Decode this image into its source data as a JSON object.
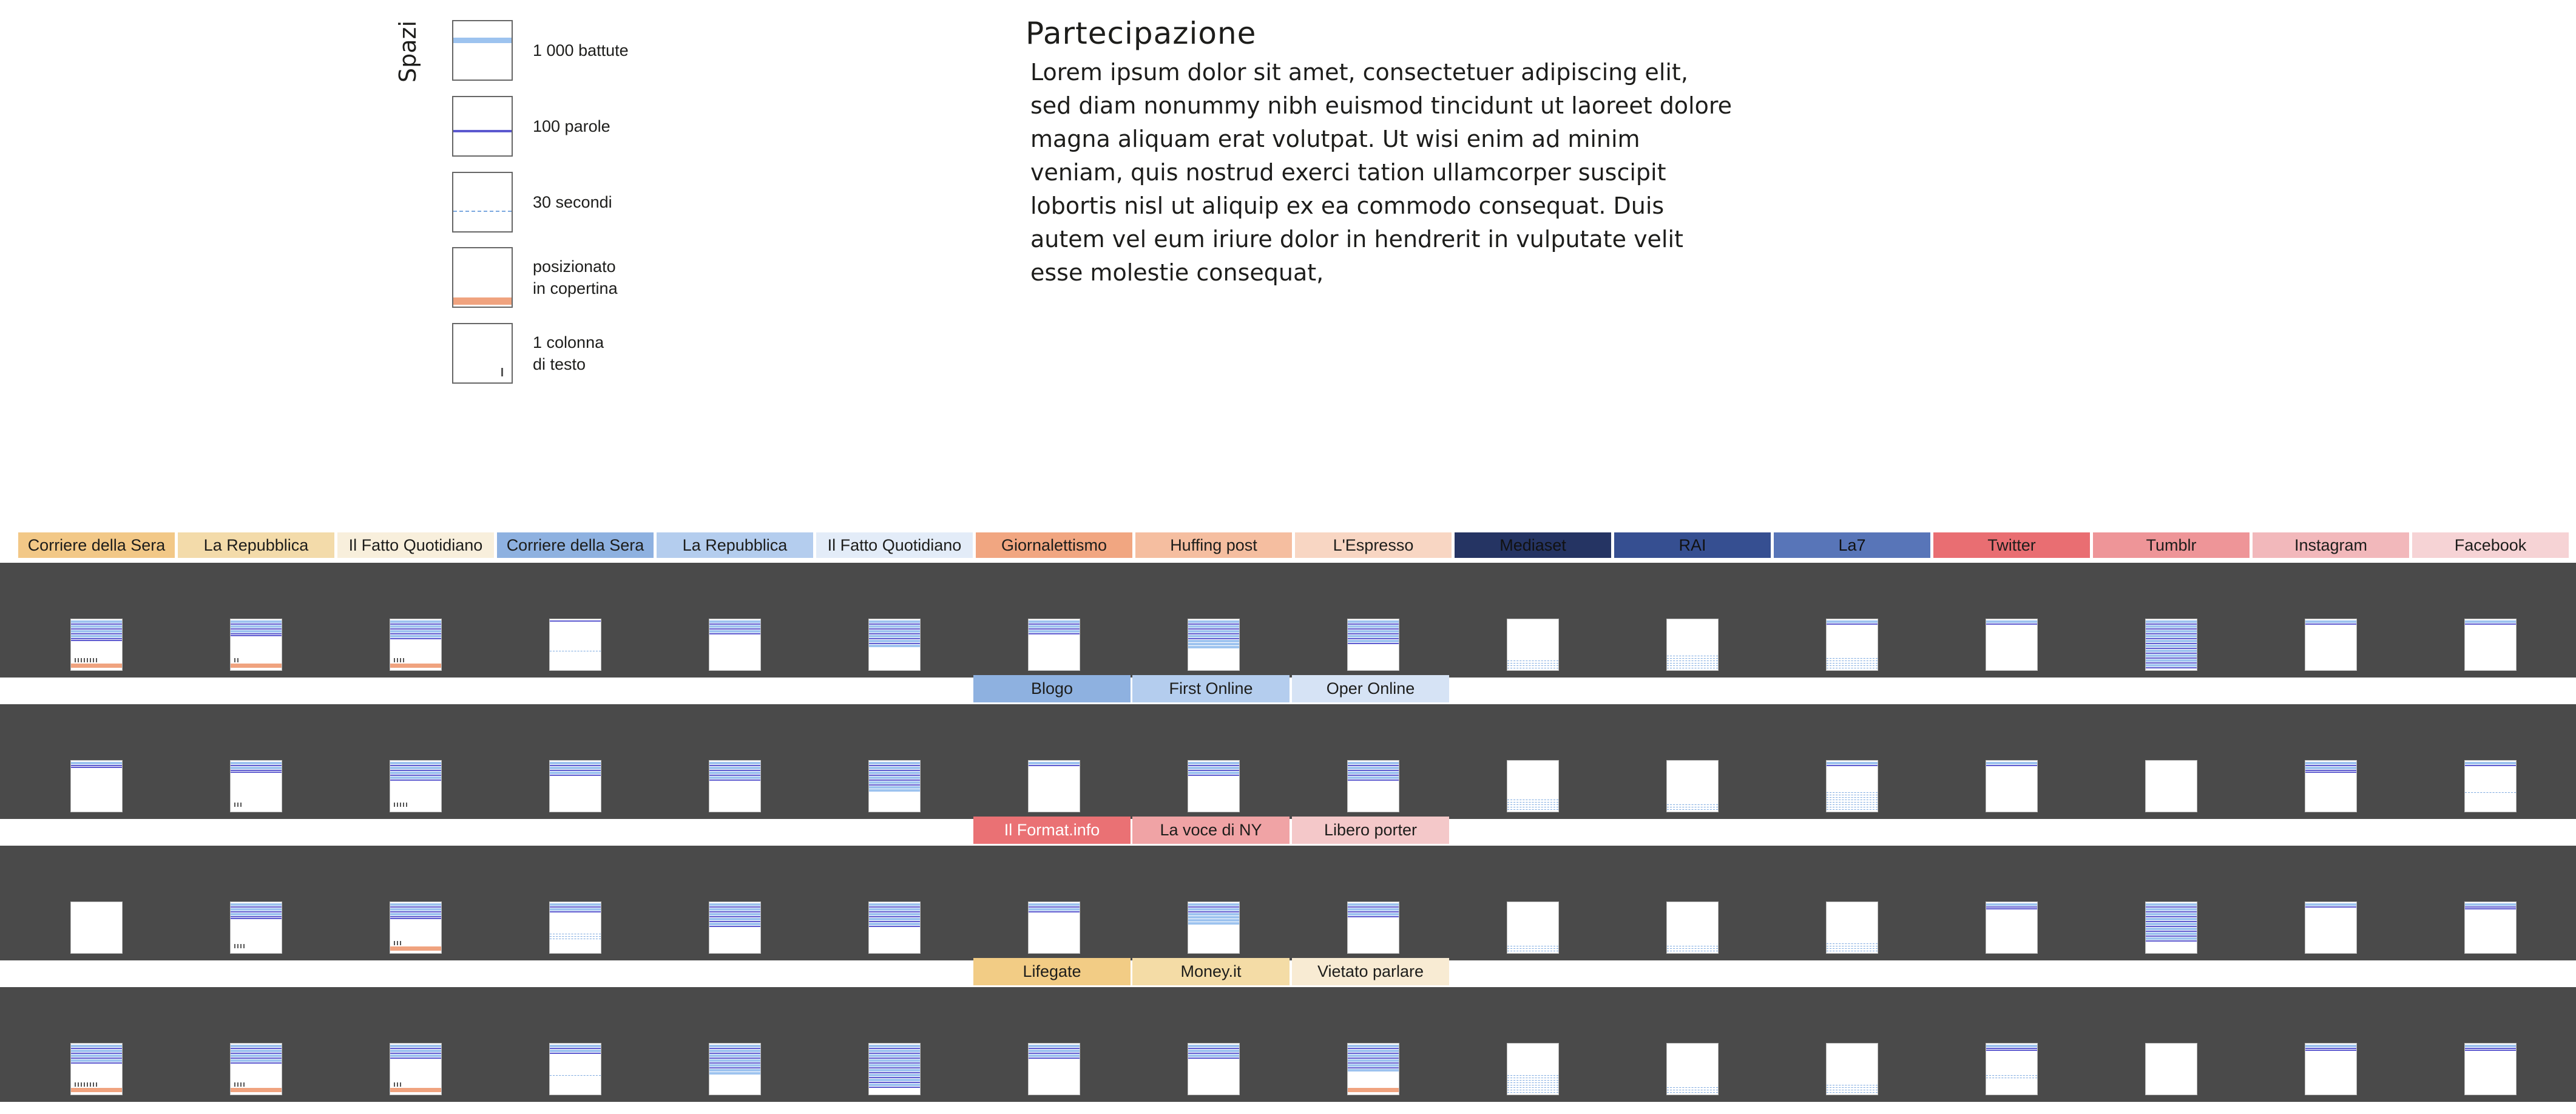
{
  "legend": {
    "title": "Spazi",
    "items": [
      {
        "label": "1 000 battute",
        "style": "chars",
        "color": "#9dc3ef"
      },
      {
        "label": "100 parole",
        "style": "words",
        "color": "#5b58cf"
      },
      {
        "label": "30 secondi",
        "style": "seconds",
        "color": "#7aa7df"
      },
      {
        "label": "posizionato\nin copertina",
        "style": "cover",
        "color": "#f0a37f"
      },
      {
        "label": "1 colonna\ndi testo",
        "style": "column",
        "color": "#555555"
      }
    ]
  },
  "intro": {
    "title": "Partecipazione",
    "body": "Lorem ipsum dolor sit amet, consectetuer adipiscing elit, sed diam nonummy nibh euismod tincidunt ut laoreet dolore magna aliquam erat volutpat. Ut wisi enim ad minim veniam, quis nostrud exerci tation ullamcorper suscipit lobortis nisl ut aliquip ex ea commodo consequat. Duis autem vel eum iriure dolor in hendrerit in vulputate velit esse molestie consequat,"
  },
  "columns": [
    {
      "label": "Corriere della Sera",
      "color": "#f2c887"
    },
    {
      "label": "La Repubblica",
      "color": "#f3dbaa"
    },
    {
      "label": "Il Fatto Quotidiano",
      "color": "#f8efdc"
    },
    {
      "label": "Corriere della Sera",
      "color": "#8eb1e0"
    },
    {
      "label": "La Repubblica",
      "color": "#b4cdee"
    },
    {
      "label": "Il Fatto Quotidiano",
      "color": "#e3ecf8"
    },
    {
      "label": "Giornalettismo",
      "color": "#f1a681"
    },
    {
      "label": "Huffing post",
      "color": "#f5bea0"
    },
    {
      "label": "L'Espresso",
      "color": "#f8d6c3"
    },
    {
      "label": "Mediaset",
      "color": "#253463"
    },
    {
      "label": "RAI",
      "color": "#364f91"
    },
    {
      "label": "La7",
      "color": "#5875b8"
    },
    {
      "label": "Twitter",
      "color": "#e96e72"
    },
    {
      "label": "Tumblr",
      "color": "#ee9598"
    },
    {
      "label": "Instagram",
      "color": "#f2b8bb"
    },
    {
      "label": "Facebook",
      "color": "#f6d3d5"
    }
  ],
  "subrows": [
    [
      {
        "label": "Blogo",
        "color": "#8eb1e0"
      },
      {
        "label": "First Online",
        "color": "#b4cdee"
      },
      {
        "label": "Oper Online",
        "color": "#d6e3f5"
      }
    ],
    [
      {
        "label": "Il Format.info",
        "color": "#ea7174"
      },
      {
        "label": "La voce di NY",
        "color": "#f0a3a5"
      },
      {
        "label": "Libero porter",
        "color": "#f4c8c9"
      }
    ],
    [
      {
        "label": "Lifegate",
        "color": "#f2cc85"
      },
      {
        "label": "Money.it",
        "color": "#f4dca6"
      },
      {
        "label": "Vietato parlare",
        "color": "#f8ebd3"
      }
    ]
  ],
  "grid": [
    [
      {
        "type": "paper",
        "chars": 4,
        "words": 5,
        "seconds": 0,
        "cover": true,
        "cols": 8
      },
      {
        "type": "paper",
        "chars": 3,
        "words": 4,
        "seconds": 0,
        "cover": true,
        "cols": 2
      },
      {
        "type": "paper",
        "chars": 4,
        "words": 4,
        "seconds": 0,
        "cover": true,
        "cols": 4
      },
      {
        "type": "paper",
        "chars": 0,
        "words": 1,
        "seconds": 1,
        "cover": false,
        "cols": 0
      },
      {
        "type": "paper",
        "chars": 3,
        "words": 3,
        "seconds": 0,
        "cover": false,
        "cols": 0
      },
      {
        "type": "paper",
        "chars": 6,
        "words": 5,
        "seconds": 0,
        "cover": false,
        "cols": 0
      },
      {
        "type": "paper",
        "chars": 3,
        "words": 3,
        "seconds": 0,
        "cover": false,
        "cols": 0
      },
      {
        "type": "paper",
        "chars": 7,
        "words": 4,
        "seconds": 0,
        "cover": false,
        "cols": 0
      },
      {
        "type": "paper",
        "chars": 5,
        "words": 5,
        "seconds": 0,
        "cover": false,
        "cols": 0
      },
      {
        "type": "video",
        "chars": 0,
        "words": 0,
        "seconds": 4,
        "cover": false,
        "cols": 0
      },
      {
        "type": "video",
        "chars": 0,
        "words": 0,
        "seconds": 6,
        "cover": false,
        "cols": 0
      },
      {
        "type": "video",
        "chars": 1,
        "words": 1,
        "seconds": 5,
        "cover": false,
        "cols": 0
      },
      {
        "type": "paper",
        "chars": 1,
        "words": 1,
        "seconds": 0,
        "cover": false,
        "cols": 0
      },
      {
        "type": "paper",
        "chars": 10,
        "words": 10,
        "seconds": 0,
        "cover": false,
        "cols": 0
      },
      {
        "type": "paper",
        "chars": 1,
        "words": 1,
        "seconds": 0,
        "cover": false,
        "cols": 0
      },
      {
        "type": "paper",
        "chars": 1,
        "words": 1,
        "seconds": 0,
        "cover": false,
        "cols": 0
      }
    ],
    [
      {
        "type": "paper",
        "chars": 1,
        "words": 2,
        "seconds": 0,
        "cover": false,
        "cols": 0
      },
      {
        "type": "paper",
        "chars": 2,
        "words": 3,
        "seconds": 0,
        "cover": false,
        "cols": 3
      },
      {
        "type": "paper",
        "chars": 4,
        "words": 4,
        "seconds": 0,
        "cover": false,
        "cols": 5
      },
      {
        "type": "paper",
        "chars": 3,
        "words": 3,
        "seconds": 0,
        "cover": false,
        "cols": 0
      },
      {
        "type": "paper",
        "chars": 4,
        "words": 4,
        "seconds": 0,
        "cover": false,
        "cols": 0
      },
      {
        "type": "paper",
        "chars": 7,
        "words": 5,
        "seconds": 0,
        "cover": false,
        "cols": 0
      },
      {
        "type": "paper",
        "chars": 1,
        "words": 1,
        "seconds": 0,
        "cover": false,
        "cols": 0
      },
      {
        "type": "paper",
        "chars": 3,
        "words": 3,
        "seconds": 0,
        "cover": false,
        "cols": 0
      },
      {
        "type": "paper",
        "chars": 4,
        "words": 4,
        "seconds": 0,
        "cover": false,
        "cols": 0
      },
      {
        "type": "video",
        "chars": 0,
        "words": 0,
        "seconds": 5,
        "cover": false,
        "cols": 0
      },
      {
        "type": "video",
        "chars": 0,
        "words": 0,
        "seconds": 3,
        "cover": false,
        "cols": 0
      },
      {
        "type": "video",
        "chars": 1,
        "words": 1,
        "seconds": 8,
        "cover": false,
        "cols": 0
      },
      {
        "type": "paper",
        "chars": 1,
        "words": 1,
        "seconds": 0,
        "cover": false,
        "cols": 0
      },
      {
        "type": "paper",
        "chars": 0,
        "words": 0,
        "seconds": 0,
        "cover": false,
        "cols": 0
      },
      {
        "type": "paper",
        "chars": 2,
        "words": 3,
        "seconds": 0,
        "cover": false,
        "cols": 0
      },
      {
        "type": "paper",
        "chars": 1,
        "words": 1,
        "seconds": 1,
        "cover": false,
        "cols": 0
      }
    ],
    [
      {
        "type": "paper",
        "chars": 0,
        "words": 0,
        "seconds": 0,
        "cover": false,
        "cols": 0
      },
      {
        "type": "paper",
        "chars": 3,
        "words": 4,
        "seconds": 0,
        "cover": false,
        "cols": 4
      },
      {
        "type": "paper",
        "chars": 3,
        "words": 4,
        "seconds": 0,
        "cover": true,
        "cols": 3
      },
      {
        "type": "paper",
        "chars": 2,
        "words": 2,
        "seconds": 3,
        "cover": false,
        "cols": 0
      },
      {
        "type": "paper",
        "chars": 5,
        "words": 5,
        "seconds": 0,
        "cover": false,
        "cols": 0
      },
      {
        "type": "paper",
        "chars": 5,
        "words": 5,
        "seconds": 0,
        "cover": false,
        "cols": 0
      },
      {
        "type": "paper",
        "chars": 2,
        "words": 2,
        "seconds": 0,
        "cover": false,
        "cols": 0
      },
      {
        "type": "paper",
        "chars": 6,
        "words": 2,
        "seconds": 0,
        "cover": false,
        "cols": 0
      },
      {
        "type": "paper",
        "chars": 3,
        "words": 3,
        "seconds": 0,
        "cover": false,
        "cols": 0
      },
      {
        "type": "video",
        "chars": 0,
        "words": 0,
        "seconds": 3,
        "cover": false,
        "cols": 0
      },
      {
        "type": "video",
        "chars": 0,
        "words": 0,
        "seconds": 3,
        "cover": false,
        "cols": 0
      },
      {
        "type": "video",
        "chars": 0,
        "words": 0,
        "seconds": 4,
        "cover": false,
        "cols": 0
      },
      {
        "type": "paper",
        "chars": 1,
        "words": 2,
        "seconds": 0,
        "cover": false,
        "cols": 0
      },
      {
        "type": "paper",
        "chars": 8,
        "words": 8,
        "seconds": 0,
        "cover": false,
        "cols": 0
      },
      {
        "type": "paper",
        "chars": 1,
        "words": 1,
        "seconds": 0,
        "cover": false,
        "cols": 0
      },
      {
        "type": "paper",
        "chars": 1,
        "words": 2,
        "seconds": 0,
        "cover": false,
        "cols": 0
      }
    ],
    [
      {
        "type": "paper",
        "chars": 4,
        "words": 4,
        "seconds": 0,
        "cover": true,
        "cols": 8
      },
      {
        "type": "paper",
        "chars": 4,
        "words": 4,
        "seconds": 0,
        "cover": true,
        "cols": 4
      },
      {
        "type": "paper",
        "chars": 3,
        "words": 3,
        "seconds": 0,
        "cover": true,
        "cols": 3
      },
      {
        "type": "paper",
        "chars": 2,
        "words": 2,
        "seconds": 1,
        "cover": false,
        "cols": 0
      },
      {
        "type": "paper",
        "chars": 7,
        "words": 5,
        "seconds": 0,
        "cover": false,
        "cols": 0
      },
      {
        "type": "paper",
        "chars": 9,
        "words": 9,
        "seconds": 0,
        "cover": false,
        "cols": 0
      },
      {
        "type": "paper",
        "chars": 3,
        "words": 3,
        "seconds": 0,
        "cover": false,
        "cols": 0
      },
      {
        "type": "paper",
        "chars": 3,
        "words": 3,
        "seconds": 0,
        "cover": false,
        "cols": 0
      },
      {
        "type": "paper",
        "chars": 6,
        "words": 5,
        "seconds": 0,
        "cover": true,
        "cols": 0
      },
      {
        "type": "video",
        "chars": 0,
        "words": 0,
        "seconds": 8,
        "cover": false,
        "cols": 0
      },
      {
        "type": "video",
        "chars": 0,
        "words": 0,
        "seconds": 3,
        "cover": false,
        "cols": 0
      },
      {
        "type": "video",
        "chars": 0,
        "words": 0,
        "seconds": 4,
        "cover": false,
        "cols": 0
      },
      {
        "type": "paper",
        "chars": 1,
        "words": 2,
        "seconds": 2,
        "cover": false,
        "cols": 0
      },
      {
        "type": "paper",
        "chars": 0,
        "words": 0,
        "seconds": 0,
        "cover": false,
        "cols": 0
      },
      {
        "type": "paper",
        "chars": 1,
        "words": 2,
        "seconds": 0,
        "cover": false,
        "cols": 0
      },
      {
        "type": "paper",
        "chars": 1,
        "words": 2,
        "seconds": 0,
        "cover": false,
        "cols": 0
      }
    ]
  ]
}
